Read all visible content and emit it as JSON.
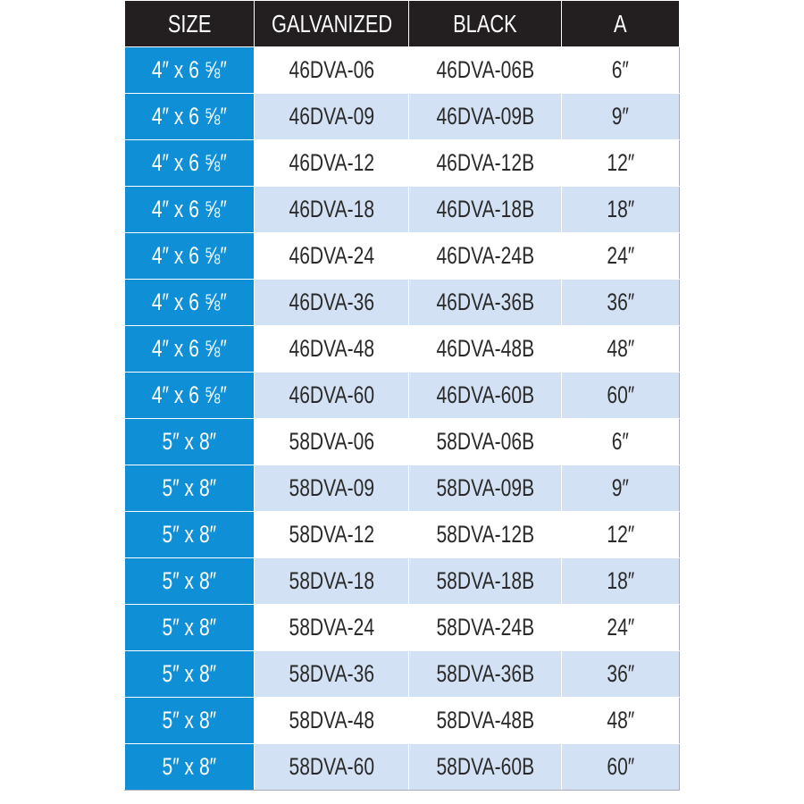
{
  "headers": [
    "SIZE",
    "GALVANIZED",
    "BLACK",
    "A"
  ],
  "rows": [
    [
      "4″ x 6 ⅝″",
      "46DVA-06",
      "46DVA-06B",
      "6″"
    ],
    [
      "4″ x 6 ⅝″",
      "46DVA-09",
      "46DVA-09B",
      "9″"
    ],
    [
      "4″ x 6 ⅝″",
      "46DVA-12",
      "46DVA-12B",
      "12″"
    ],
    [
      "4″ x 6 ⅝″",
      "46DVA-18",
      "46DVA-18B",
      "18″"
    ],
    [
      "4″ x 6 ⅝″",
      "46DVA-24",
      "46DVA-24B",
      "24″"
    ],
    [
      "4″ x 6 ⅝″",
      "46DVA-36",
      "46DVA-36B",
      "36″"
    ],
    [
      "4″ x 6 ⅝″",
      "46DVA-48",
      "46DVA-48B",
      "48″"
    ],
    [
      "4″ x 6 ⅝″",
      "46DVA-60",
      "46DVA-60B",
      "60″"
    ],
    [
      "5″ x 8″",
      "58DVA-06",
      "58DVA-06B",
      "6″"
    ],
    [
      "5″ x 8″",
      "58DVA-09",
      "58DVA-09B",
      "9″"
    ],
    [
      "5″ x 8″",
      "58DVA-12",
      "58DVA-12B",
      "12″"
    ],
    [
      "5″ x 8″",
      "58DVA-18",
      "58DVA-18B",
      "18″"
    ],
    [
      "5″ x 8″",
      "58DVA-24",
      "58DVA-24B",
      "24″"
    ],
    [
      "5″ x 8″",
      "58DVA-36",
      "58DVA-36B",
      "36″"
    ],
    [
      "5″ x 8″",
      "58DVA-48",
      "58DVA-48B",
      "48″"
    ],
    [
      "5″ x 8″",
      "58DVA-60",
      "58DVA-60B",
      "60″"
    ]
  ],
  "colors": {
    "header": "#231f20",
    "size_column": "#0f8fd5",
    "alt_row": "#d2e2f4"
  }
}
